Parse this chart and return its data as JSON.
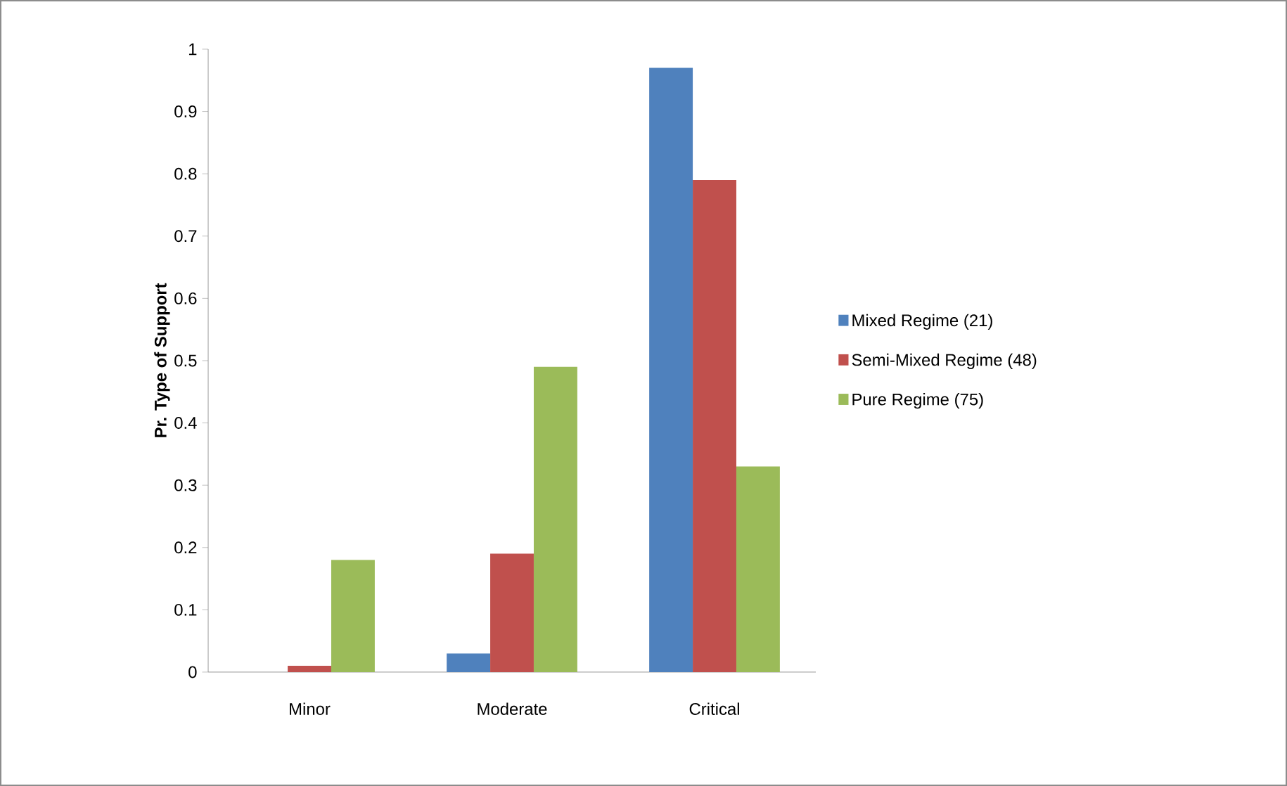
{
  "chart_data": {
    "type": "bar",
    "ylabel": "**Pr. Type of Support**",
    "categories": [
      "Minor",
      "Moderate",
      "Critical"
    ],
    "series": [
      {
        "name": "Mixed Regime (21)",
        "color": "#4f81bd",
        "values": [
          0,
          0.03,
          0.97
        ]
      },
      {
        "name": "Semi-Mixed Regime (48)",
        "color": "#c0504d",
        "values": [
          0.01,
          0.19,
          0.79
        ]
      },
      {
        "name": "Pure Regime (75)",
        "color": "#9bbb59",
        "values": [
          0.18,
          0.49,
          0.33
        ]
      }
    ],
    "ylim": [
      0,
      1
    ],
    "yticks": [
      0,
      0.1,
      0.2,
      0.3,
      0.4,
      0.5,
      0.6,
      0.7,
      0.8,
      0.9,
      1
    ],
    "grid": false,
    "legend": "right"
  }
}
